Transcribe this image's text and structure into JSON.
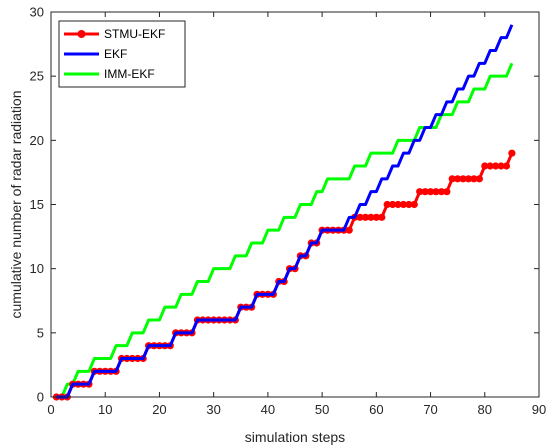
{
  "chart_data": {
    "type": "line",
    "xlabel": "simulation steps",
    "ylabel": "cumulative number of radar radiation",
    "xlim": [
      0,
      90
    ],
    "ylim": [
      0,
      30
    ],
    "xticks": [
      0,
      10,
      20,
      30,
      40,
      50,
      60,
      70,
      80,
      90
    ],
    "yticks": [
      0,
      5,
      10,
      15,
      20,
      25,
      30
    ],
    "grid": false,
    "legend_position": "top-left",
    "series": [
      {
        "name": "STMU-EKF",
        "color": "#ff0000",
        "marker": "circle",
        "x": [
          1,
          2,
          3,
          4,
          5,
          6,
          7,
          8,
          9,
          10,
          11,
          12,
          13,
          14,
          15,
          16,
          17,
          18,
          19,
          20,
          21,
          22,
          23,
          24,
          25,
          26,
          27,
          28,
          29,
          30,
          31,
          32,
          33,
          34,
          35,
          36,
          37,
          38,
          39,
          40,
          41,
          42,
          43,
          44,
          45,
          46,
          47,
          48,
          49,
          50,
          51,
          52,
          53,
          54,
          55,
          56,
          57,
          58,
          59,
          60,
          61,
          62,
          63,
          64,
          65,
          66,
          67,
          68,
          69,
          70,
          71,
          72,
          73,
          74,
          75,
          76,
          77,
          78,
          79,
          80,
          81,
          82,
          83,
          84,
          85
        ],
        "values": [
          0,
          0,
          0,
          1,
          1,
          1,
          1,
          2,
          2,
          2,
          2,
          2,
          3,
          3,
          3,
          3,
          3,
          4,
          4,
          4,
          4,
          4,
          5,
          5,
          5,
          5,
          6,
          6,
          6,
          6,
          6,
          6,
          6,
          6,
          7,
          7,
          7,
          8,
          8,
          8,
          8,
          9,
          9,
          10,
          10,
          11,
          11,
          12,
          12,
          13,
          13,
          13,
          13,
          13,
          13,
          14,
          14,
          14,
          14,
          14,
          14,
          15,
          15,
          15,
          15,
          15,
          15,
          16,
          16,
          16,
          16,
          16,
          16,
          17,
          17,
          17,
          17,
          17,
          17,
          18,
          18,
          18,
          18,
          18,
          19
        ]
      },
      {
        "name": "EKF",
        "color": "#0000ff",
        "x": [
          1,
          2,
          3,
          4,
          5,
          6,
          7,
          8,
          9,
          10,
          11,
          12,
          13,
          14,
          15,
          16,
          17,
          18,
          19,
          20,
          21,
          22,
          23,
          24,
          25,
          26,
          27,
          28,
          29,
          30,
          31,
          32,
          33,
          34,
          35,
          36,
          37,
          38,
          39,
          40,
          41,
          42,
          43,
          44,
          45,
          46,
          47,
          48,
          49,
          50,
          51,
          52,
          53,
          54,
          55,
          56,
          57,
          58,
          59,
          60,
          61,
          62,
          63,
          64,
          65,
          66,
          67,
          68,
          69,
          70,
          71,
          72,
          73,
          74,
          75,
          76,
          77,
          78,
          79,
          80,
          81,
          82,
          83,
          84,
          85
        ],
        "values": [
          0,
          0,
          0,
          1,
          1,
          1,
          1,
          2,
          2,
          2,
          2,
          2,
          3,
          3,
          3,
          3,
          3,
          4,
          4,
          4,
          4,
          4,
          5,
          5,
          5,
          5,
          6,
          6,
          6,
          6,
          6,
          6,
          6,
          6,
          7,
          7,
          7,
          8,
          8,
          8,
          8,
          9,
          9,
          10,
          10,
          11,
          11,
          12,
          12,
          13,
          13,
          13,
          13,
          13,
          14,
          14,
          15,
          15,
          16,
          16,
          17,
          17,
          18,
          18,
          19,
          19,
          20,
          20,
          21,
          21,
          22,
          22,
          23,
          23,
          24,
          24,
          25,
          25,
          26,
          26,
          27,
          27,
          28,
          28,
          29
        ]
      },
      {
        "name": "IMM-EKF",
        "color": "#00ff00",
        "x": [
          1,
          2,
          3,
          4,
          5,
          6,
          7,
          8,
          9,
          10,
          11,
          12,
          13,
          14,
          15,
          16,
          17,
          18,
          19,
          20,
          21,
          22,
          23,
          24,
          25,
          26,
          27,
          28,
          29,
          30,
          31,
          32,
          33,
          34,
          35,
          36,
          37,
          38,
          39,
          40,
          41,
          42,
          43,
          44,
          45,
          46,
          47,
          48,
          49,
          50,
          51,
          52,
          53,
          54,
          55,
          56,
          57,
          58,
          59,
          60,
          61,
          62,
          63,
          64,
          65,
          66,
          67,
          68,
          69,
          70,
          71,
          72,
          73,
          74,
          75,
          76,
          77,
          78,
          79,
          80,
          81,
          82,
          83,
          84,
          85
        ],
        "values": [
          0,
          0,
          1,
          1,
          2,
          2,
          2,
          3,
          3,
          3,
          3,
          4,
          4,
          4,
          5,
          5,
          5,
          6,
          6,
          6,
          7,
          7,
          7,
          8,
          8,
          8,
          9,
          9,
          9,
          10,
          10,
          10,
          10,
          11,
          11,
          11,
          12,
          12,
          12,
          13,
          13,
          13,
          14,
          14,
          14,
          15,
          15,
          15,
          16,
          16,
          17,
          17,
          17,
          17,
          17,
          18,
          18,
          18,
          19,
          19,
          19,
          19,
          19,
          20,
          20,
          20,
          20,
          21,
          21,
          21,
          21,
          22,
          22,
          22,
          23,
          23,
          23,
          24,
          24,
          24,
          25,
          25,
          25,
          25,
          26
        ]
      }
    ]
  }
}
